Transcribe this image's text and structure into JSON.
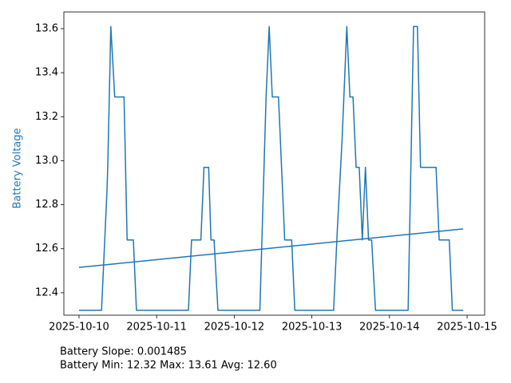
{
  "chart_data": {
    "type": "line",
    "y_label": "Battery Voltage",
    "y_label_color": "#1f77b4",
    "annotations": [
      "Battery Slope: 0.001485",
      "Battery Min: 12.32 Max: 13.61 Avg: 12.60"
    ],
    "xlim": [
      -0.195,
      5.226
    ],
    "xticks": [
      {
        "value": 0,
        "label": "2025-10-10"
      },
      {
        "value": 1,
        "label": "2025-10-11"
      },
      {
        "value": 2,
        "label": "2025-10-12"
      },
      {
        "value": 3,
        "label": "2025-10-13"
      },
      {
        "value": 4,
        "label": "2025-10-14"
      },
      {
        "value": 5,
        "label": "2025-10-15"
      }
    ],
    "ylim": [
      12.298,
      13.676
    ],
    "yticks": [
      12.4,
      12.6,
      12.8,
      {
        "value": 13,
        "label": "13.0"
      },
      13.2,
      13.4,
      13.6
    ],
    "grid": false,
    "series": [
      {
        "color": "#1f77b4",
        "x": [
          0,
          0.29,
          0.36,
          0.37,
          0.41,
          0.46,
          0.58,
          0.62,
          0.7,
          0.74,
          1.41,
          1.45,
          1.57,
          1.61,
          1.67,
          1.7,
          1.74,
          1.79,
          2.33,
          2.41,
          2.45,
          2.49,
          2.57,
          2.65,
          2.74,
          2.78,
          3.28,
          3.33,
          3.39,
          3.45,
          3.49,
          3.53,
          3.57,
          3.61,
          3.65,
          3.69,
          3.73,
          3.77,
          3.82,
          4.24,
          4.31,
          4.36,
          4.4,
          4.6,
          4.64,
          4.77,
          4.81,
          4.95
        ],
        "values": [
          12.32,
          12.32,
          12.86,
          12.97,
          13.61,
          13.29,
          13.29,
          12.64,
          12.64,
          12.32,
          12.32,
          12.64,
          12.64,
          12.97,
          12.97,
          12.64,
          12.64,
          12.32,
          12.32,
          13.29,
          13.61,
          13.29,
          13.29,
          12.64,
          12.64,
          12.32,
          12.32,
          12.7,
          13.1,
          13.61,
          13.29,
          13.29,
          12.97,
          12.97,
          12.64,
          12.97,
          12.64,
          12.64,
          12.32,
          12.32,
          13.61,
          13.61,
          12.97,
          12.97,
          12.64,
          12.64,
          12.32,
          12.32
        ]
      },
      {
        "color": "#1f77b4",
        "x": [
          0,
          4.95
        ],
        "values": [
          12.515,
          12.69
        ]
      }
    ]
  }
}
